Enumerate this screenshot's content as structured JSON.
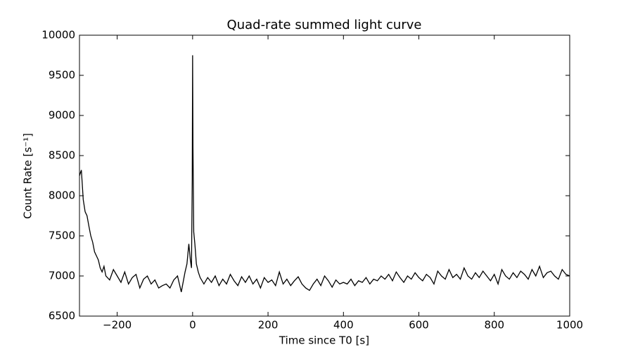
{
  "chart_data": {
    "type": "line",
    "title": "Quad-rate summed light curve",
    "xlabel": "Time since T0 [s]",
    "ylabel": "Count Rate [s⁻¹]",
    "x": [
      -300,
      -295,
      -290,
      -285,
      -280,
      -275,
      -270,
      -265,
      -260,
      -255,
      -250,
      -245,
      -240,
      -235,
      -230,
      -220,
      -210,
      -200,
      -190,
      -180,
      -170,
      -160,
      -150,
      -140,
      -130,
      -120,
      -110,
      -100,
      -90,
      -80,
      -70,
      -60,
      -50,
      -40,
      -30,
      -20,
      -15,
      -10,
      -6,
      -3,
      -1,
      0,
      1,
      3,
      6,
      10,
      15,
      20,
      30,
      40,
      50,
      60,
      70,
      80,
      90,
      100,
      110,
      120,
      130,
      140,
      150,
      160,
      170,
      180,
      190,
      200,
      210,
      220,
      230,
      240,
      250,
      260,
      270,
      280,
      290,
      300,
      310,
      320,
      330,
      340,
      350,
      360,
      370,
      380,
      390,
      400,
      410,
      420,
      430,
      440,
      450,
      460,
      470,
      480,
      490,
      500,
      510,
      520,
      530,
      540,
      550,
      560,
      570,
      580,
      590,
      600,
      610,
      620,
      630,
      640,
      650,
      660,
      670,
      680,
      690,
      700,
      710,
      720,
      730,
      740,
      750,
      760,
      770,
      780,
      790,
      800,
      810,
      820,
      830,
      840,
      850,
      860,
      870,
      880,
      890,
      900,
      910,
      920,
      930,
      940,
      950,
      960,
      970,
      980,
      990,
      1000
    ],
    "series": [
      {
        "name": "Quad-rate",
        "color": "#000000",
        "values": [
          8250,
          8320,
          7950,
          7800,
          7750,
          7620,
          7500,
          7420,
          7300,
          7250,
          7200,
          7100,
          7050,
          7120,
          7000,
          6950,
          7080,
          7000,
          6920,
          7050,
          6900,
          6980,
          7020,
          6850,
          6960,
          7000,
          6900,
          6950,
          6850,
          6880,
          6900,
          6850,
          6950,
          7000,
          6800,
          7050,
          7150,
          7400,
          7200,
          7100,
          8200,
          9750,
          8600,
          7550,
          7400,
          7150,
          7050,
          6980,
          6900,
          6980,
          6920,
          7000,
          6880,
          6960,
          6900,
          7020,
          6940,
          6880,
          6990,
          6920,
          7000,
          6900,
          6960,
          6850,
          6980,
          6920,
          6950,
          6880,
          7050,
          6900,
          6960,
          6880,
          6940,
          6990,
          6900,
          6850,
          6820,
          6900,
          6960,
          6880,
          7000,
          6940,
          6860,
          6950,
          6900,
          6920,
          6900,
          6960,
          6880,
          6940,
          6920,
          6980,
          6900,
          6960,
          6940,
          7000,
          6960,
          7020,
          6940,
          7050,
          6980,
          6920,
          7000,
          6960,
          7040,
          6980,
          6940,
          7020,
          6980,
          6900,
          7060,
          7000,
          6960,
          7080,
          6980,
          7020,
          6960,
          7100,
          7000,
          6960,
          7040,
          6980,
          7060,
          7000,
          6940,
          7020,
          6900,
          7080,
          7000,
          6960,
          7040,
          6980,
          7060,
          7020,
          6960,
          7080,
          7000,
          7120,
          6980,
          7040,
          7060,
          7000,
          6960,
          7080,
          7020,
          7000
        ]
      }
    ],
    "xlim": [
      -300,
      1000
    ],
    "xticks": [
      {
        "value": -200,
        "label": "−200"
      },
      0,
      200,
      400,
      600,
      800,
      1000
    ],
    "ylim": [
      6500,
      10000
    ],
    "yticks": [
      6500,
      7000,
      7500,
      8000,
      8500,
      9000,
      9500,
      10000
    ],
    "grid": false
  }
}
